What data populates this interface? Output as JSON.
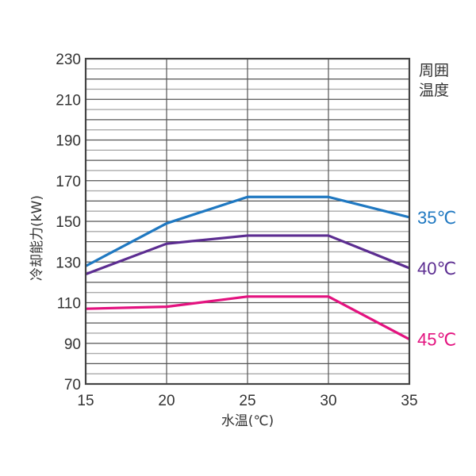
{
  "chart_data": {
    "type": "line",
    "title": "",
    "xlabel": "水温(℃)",
    "ylabel": "冷却能力(kW)",
    "x": [
      15,
      20,
      25,
      30,
      35
    ],
    "xticks": [
      "15",
      "20",
      "25",
      "30",
      "35"
    ],
    "yticks": [
      "70",
      "90",
      "110",
      "130",
      "150",
      "170",
      "190",
      "210",
      "230"
    ],
    "xlim": [
      15,
      35
    ],
    "ylim": [
      70,
      230
    ],
    "grid": {
      "horizontal_step": 5,
      "vertical_step": 5
    },
    "legend_title": [
      "周囲",
      "温度"
    ],
    "legend_position": "right",
    "series": [
      {
        "name": "35℃",
        "color": "#1f78c1",
        "values": [
          128,
          149,
          162,
          162,
          152
        ]
      },
      {
        "name": "40℃",
        "color": "#5c2d91",
        "values": [
          124,
          139,
          143,
          143,
          127
        ]
      },
      {
        "name": "45℃",
        "color": "#e3127f",
        "values": [
          107,
          108,
          113,
          113,
          92
        ]
      }
    ]
  }
}
